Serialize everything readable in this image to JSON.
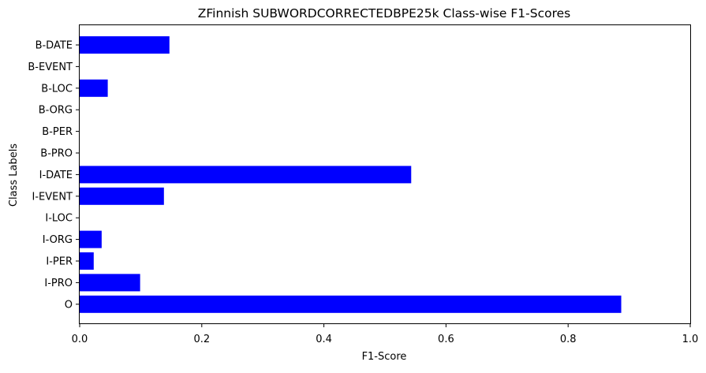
{
  "chart_data": {
    "type": "bar",
    "orientation": "horizontal",
    "title": "ZFinnish SUBWORDCORRECTEDBPE25k Class-wise F1-Scores",
    "xlabel": "F1-Score",
    "ylabel": "Class Labels",
    "xlim": [
      0,
      1.0
    ],
    "xticks": [
      "0.0",
      "0.2",
      "0.4",
      "0.6",
      "0.8",
      "1.0"
    ],
    "categories": [
      "B-DATE",
      "B-EVENT",
      "B-LOC",
      "B-ORG",
      "B-PER",
      "B-PRO",
      "I-DATE",
      "I-EVENT",
      "I-LOC",
      "I-ORG",
      "I-PER",
      "I-PRO",
      "O"
    ],
    "values": [
      0.147,
      0.0,
      0.046,
      0.0,
      0.0,
      0.0,
      0.543,
      0.138,
      0.0,
      0.036,
      0.023,
      0.099,
      0.887
    ],
    "bar_color": "#0000ff",
    "grid": false,
    "legend": "none"
  }
}
